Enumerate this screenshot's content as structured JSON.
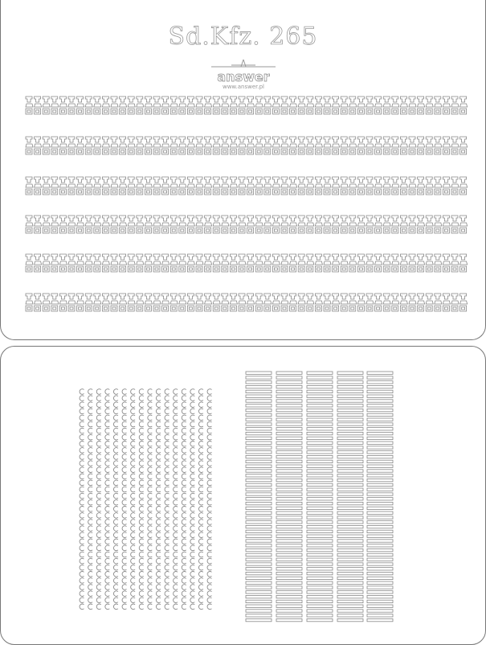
{
  "sheet": {
    "title": "Sd.Kfz. 265",
    "logo": {
      "brand": "answer",
      "url": "www.answer.pl"
    },
    "colors": {
      "line": "#888888",
      "background": "#ffffff"
    },
    "track_strips": 6,
    "c_parts_grid": {
      "columns": 16,
      "rows": 34
    },
    "bar_columns": 5,
    "bars_per_column": 54
  }
}
